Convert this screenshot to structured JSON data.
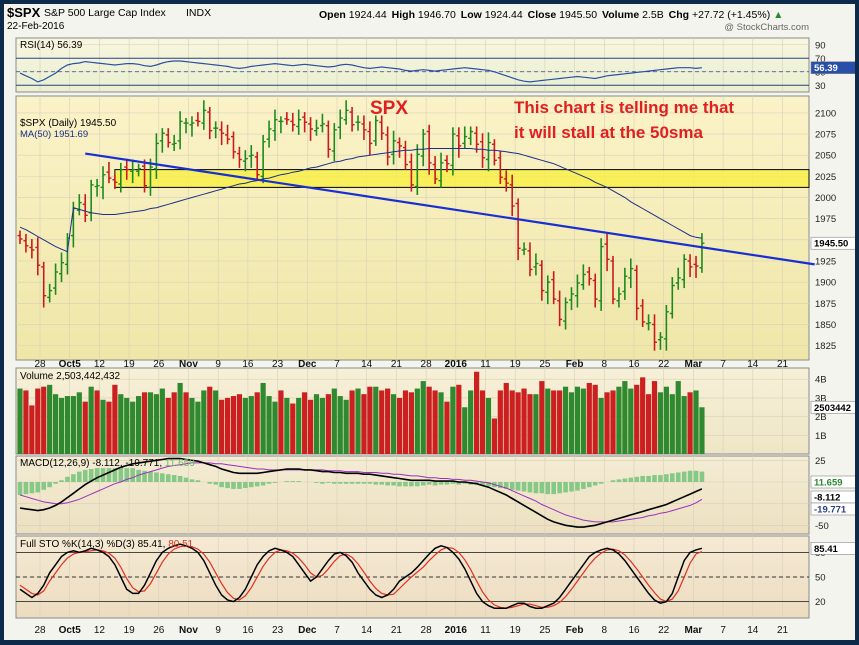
{
  "header": {
    "symbol": "$SPX",
    "name": "S&P 500 Large Cap Index",
    "exchange": "INDX",
    "date": "22-Feb-2016",
    "open_label": "Open",
    "open": "1924.44",
    "high_label": "High",
    "high": "1946.70",
    "low_label": "Low",
    "low": "1924.44",
    "close_label": "Close",
    "close": "1945.50",
    "volume_label": "Volume",
    "volume": "2.5B",
    "chg_label": "Chg",
    "chg": "+27.72 (+1.45%)",
    "chg_arrow": "▲",
    "watermark": "@ StockCharts.com"
  },
  "annotations": {
    "spx_label": "SPX",
    "comment_line1": "This chart is telling me that",
    "comment_line2": "it will stall at the 50sma"
  },
  "x_axis": {
    "ticks": [
      "28",
      "Oct5",
      "12",
      "19",
      "26",
      "Nov",
      "9",
      "16",
      "23",
      "Dec",
      "7",
      "14",
      "21",
      "28",
      "2016",
      "11",
      "19",
      "25",
      "Feb",
      "8",
      "16",
      "22",
      "Mar",
      "7",
      "14",
      "21"
    ],
    "bold": [
      "Oct5",
      "Nov",
      "Dec",
      "2016",
      "Feb",
      "Mar"
    ]
  },
  "chart_data": [
    {
      "type": "bar",
      "subtype": "ohlc",
      "legend": [
        "$SPX (Daily) 1945.50",
        "MA(50) 1951.69"
      ],
      "ylim": [
        1808,
        2120
      ],
      "yticks": [
        1825,
        1850,
        1875,
        1900,
        1925,
        1950,
        1975,
        2000,
        2025,
        2050,
        2075,
        2100
      ],
      "last_value_tag": "1945.50",
      "series_close": [
        1951,
        1943,
        1938,
        1920,
        1884,
        1890,
        1912,
        1923,
        1952,
        1987,
        1994,
        1979,
        2015,
        2014,
        2027,
        2023,
        2018,
        2033,
        2033,
        2033,
        2034,
        2014,
        2036,
        2064,
        2076,
        2065,
        2064,
        2090,
        2088,
        2088,
        2090,
        2103,
        2079,
        2082,
        2076,
        2069,
        2054,
        2045,
        2046,
        2050,
        2027,
        2066,
        2081,
        2092,
        2090,
        2092,
        2086,
        2092,
        2089,
        2081,
        2082,
        2087,
        2057,
        2080,
        2094,
        2103,
        2086,
        2089,
        2080,
        2064,
        2091,
        2076,
        2048,
        2067,
        2061,
        2039,
        2015,
        2051,
        2075,
        2041,
        2022,
        2041,
        2040,
        2075,
        2061,
        2072,
        2078,
        2063,
        2047,
        2065,
        2044,
        2024,
        2017,
        1990,
        1940,
        1939,
        1915,
        1922,
        1890,
        1900,
        1880,
        1856,
        1876,
        1886,
        1899,
        1909,
        1904,
        1880,
        1942,
        1927,
        1880,
        1886,
        1907,
        1916,
        1869,
        1853,
        1852,
        1829,
        1835,
        1865,
        1896,
        1905,
        1927,
        1918,
        1919,
        1946
      ],
      "ma50": [
        1965,
        1962,
        1958,
        1954,
        1950,
        1946,
        1942,
        1939,
        1936,
        1988,
        1986,
        1984,
        1982,
        1981,
        1980,
        1980,
        1980,
        1981,
        1982,
        1983,
        1984,
        1985,
        1987,
        1988,
        1990,
        1992,
        1994,
        1996,
        1998,
        2000,
        2002,
        2004,
        2006,
        2008,
        2010,
        2012,
        2014,
        2016,
        2017,
        2019,
        2020,
        2022,
        2023,
        2025,
        2027,
        2028,
        2030,
        2031,
        2033,
        2035,
        2036,
        2038,
        2040,
        2042,
        2043,
        2045,
        2046,
        2048,
        2049,
        2050,
        2051,
        2052,
        2053,
        2054,
        2055,
        2056,
        2056,
        2057,
        2057,
        2058,
        2058,
        2058,
        2058,
        2058,
        2058,
        2058,
        2058,
        2057,
        2057,
        2056,
        2056,
        2055,
        2054,
        2053,
        2052,
        2050,
        2048,
        2046,
        2044,
        2042,
        2040,
        2037,
        2034,
        2031,
        2028,
        2025,
        2022,
        2018,
        2015,
        2012,
        2008,
        2004,
        2000,
        1995,
        1991,
        1987,
        1983,
        1979,
        1975,
        1971,
        1967,
        1963,
        1959,
        1955,
        1953,
        1952
      ],
      "support_zone": [
        2012,
        2033
      ],
      "trendline": {
        "from": {
          "i": 11,
          "v": 2052
        },
        "to": {
          "i": 134,
          "v": 1921
        }
      }
    },
    {
      "type": "line",
      "name": "RSI(14)",
      "legend": "RSI(14) 56.39",
      "ylim": [
        20,
        100
      ],
      "yticks": [
        90,
        70,
        50,
        30
      ],
      "levels": [
        70,
        30
      ],
      "last_value_tag": "56.39",
      "values": [
        48,
        44,
        40,
        35,
        38,
        43,
        48,
        55,
        60,
        62,
        63,
        65,
        64,
        63,
        62,
        61,
        60,
        61,
        62,
        62,
        61,
        59,
        58,
        60,
        63,
        65,
        66,
        66,
        65,
        64,
        63,
        62,
        61,
        60,
        59,
        58,
        56,
        55,
        56,
        58,
        59,
        60,
        61,
        62,
        61,
        60,
        59,
        60,
        61,
        60,
        59,
        58,
        57,
        58,
        60,
        61,
        60,
        58,
        56,
        55,
        56,
        57,
        56,
        55,
        54,
        52,
        51,
        52,
        53,
        52,
        51,
        52,
        53,
        54,
        55,
        56,
        55,
        54,
        53,
        52,
        50,
        47,
        44,
        41,
        38,
        36,
        35,
        36,
        37,
        38,
        39,
        40,
        41,
        42,
        43,
        42,
        41,
        40,
        42,
        44,
        45,
        46,
        47,
        48,
        49,
        50,
        51,
        52,
        53,
        54,
        55,
        56,
        56,
        56,
        55,
        56
      ]
    },
    {
      "type": "bar",
      "name": "Volume",
      "legend": "Volume 2,503,442,432",
      "ylim": [
        0,
        4.6
      ],
      "yticks": [
        1,
        2,
        3,
        4
      ],
      "ytick_labels": [
        "1B",
        "2B",
        "3B",
        "4B"
      ],
      "last_value_tag": "2503442",
      "values": [
        3.5,
        3.4,
        2.6,
        3.5,
        3.6,
        3.7,
        3.2,
        3.0,
        3.1,
        3.1,
        3.3,
        2.8,
        3.6,
        3.4,
        2.9,
        2.8,
        3.7,
        3.2,
        3.0,
        2.8,
        3.1,
        3.3,
        3.3,
        3.2,
        3.5,
        3.0,
        3.3,
        3.8,
        3.3,
        3.0,
        2.8,
        3.4,
        3.6,
        3.4,
        2.9,
        3.0,
        3.1,
        3.2,
        3.0,
        3.1,
        3.3,
        3.8,
        3.1,
        2.8,
        3.4,
        3.0,
        2.7,
        3.0,
        3.3,
        2.9,
        3.2,
        3.0,
        3.2,
        3.5,
        3.1,
        2.9,
        3.4,
        3.5,
        3.2,
        3.6,
        3.6,
        3.4,
        3.5,
        3.2,
        3.0,
        3.4,
        3.3,
        3.5,
        3.9,
        3.6,
        3.4,
        3.3,
        2.8,
        3.6,
        3.7,
        2.5,
        3.4,
        4.4,
        3.4,
        3.0,
        1.9,
        3.4,
        3.8,
        3.4,
        3.3,
        3.5,
        3.2,
        3.2,
        3.9,
        3.5,
        3.4,
        3.4,
        3.6,
        3.3,
        3.6,
        3.5,
        3.8,
        3.7,
        3.0,
        3.3,
        3.4,
        3.6,
        3.9,
        3.5,
        3.7,
        4.1,
        3.2,
        3.9,
        3.3,
        3.6,
        3.2,
        3.9,
        3.1,
        3.3,
        3.4,
        2.5
      ],
      "up_color": "#2f8a2f",
      "down_color": "#cc2020"
    },
    {
      "type": "line",
      "name": "MACD(12,26,9)",
      "legend_label": "MACD(12,26,9)",
      "legend_macd": "-8.112",
      "legend_signal": "-19.771",
      "legend_hist": "11.659",
      "ylim": [
        -60,
        30
      ],
      "yticks": [
        25,
        0,
        -25,
        -50
      ],
      "last_value_tags": [
        "11.659",
        "-8.112",
        "-19.771"
      ],
      "macd": [
        -30,
        -31,
        -32,
        -33,
        -32,
        -30,
        -27,
        -23,
        -18,
        -13,
        -8,
        -3,
        1,
        5,
        8,
        11,
        14,
        17,
        19,
        21,
        22,
        23,
        24,
        25,
        26,
        27,
        27,
        27,
        26,
        25,
        24,
        22,
        20,
        18,
        15,
        13,
        11,
        10,
        10,
        10,
        10,
        11,
        12,
        13,
        14,
        15,
        15,
        15,
        14,
        14,
        13,
        12,
        12,
        11,
        11,
        10,
        10,
        10,
        9,
        9,
        8,
        7,
        6,
        5,
        4,
        3,
        2,
        2,
        2,
        2,
        1,
        1,
        1,
        1,
        0,
        0,
        -1,
        -2,
        -4,
        -6,
        -9,
        -12,
        -15,
        -19,
        -23,
        -27,
        -31,
        -35,
        -39,
        -43,
        -46,
        -48,
        -50,
        -51,
        -52,
        -52,
        -51,
        -50,
        -48,
        -46,
        -44,
        -42,
        -40,
        -38,
        -36,
        -34,
        -32,
        -30,
        -28,
        -26,
        -23,
        -20,
        -17,
        -14,
        -11,
        -8
      ],
      "signal": [
        -15,
        -17,
        -19,
        -21,
        -23,
        -24,
        -25,
        -25,
        -24,
        -22,
        -20,
        -17,
        -14,
        -11,
        -8,
        -5,
        -2,
        0,
        3,
        5,
        8,
        10,
        12,
        14,
        16,
        18,
        19,
        20,
        21,
        22,
        22,
        22,
        22,
        21,
        21,
        20,
        19,
        18,
        17,
        16,
        15,
        15,
        14,
        14,
        14,
        14,
        14,
        14,
        14,
        14,
        14,
        14,
        13,
        13,
        13,
        12,
        12,
        12,
        11,
        11,
        11,
        10,
        10,
        9,
        9,
        8,
        7,
        7,
        6,
        5,
        5,
        4,
        4,
        3,
        3,
        2,
        2,
        1,
        0,
        -1,
        -3,
        -5,
        -7,
        -10,
        -13,
        -16,
        -19,
        -22,
        -26,
        -29,
        -32,
        -35,
        -38,
        -40,
        -42,
        -44,
        -45,
        -46,
        -46,
        -46,
        -46,
        -45,
        -44,
        -43,
        -42,
        -41,
        -39,
        -38,
        -36,
        -35,
        -33,
        -31,
        -29,
        -27,
        -24,
        -20
      ],
      "macd_color": "#000000",
      "signal_color": "#9b30c0",
      "hist_color": "#86c886"
    },
    {
      "type": "line",
      "name": "Full STO",
      "legend_label": "Full STO %K(14,3) %D(3)",
      "legend_k": "85.41",
      "legend_d": "80.51",
      "ylim": [
        0,
        100
      ],
      "yticks": [
        80,
        50,
        20
      ],
      "levels": [
        80,
        50,
        20
      ],
      "last_value_tag": "85.41",
      "k": [
        35,
        30,
        25,
        30,
        40,
        55,
        65,
        75,
        80,
        82,
        80,
        82,
        85,
        83,
        80,
        75,
        65,
        50,
        35,
        30,
        30,
        40,
        55,
        70,
        80,
        85,
        88,
        90,
        88,
        85,
        80,
        70,
        55,
        40,
        28,
        22,
        20,
        25,
        35,
        50,
        65,
        75,
        82,
        85,
        83,
        80,
        75,
        65,
        55,
        45,
        50,
        60,
        70,
        78,
        80,
        76,
        68,
        55,
        45,
        35,
        28,
        25,
        28,
        35,
        45,
        50,
        55,
        62,
        70,
        78,
        85,
        88,
        86,
        80,
        72,
        60,
        45,
        30,
        20,
        15,
        12,
        12,
        12,
        15,
        18,
        18,
        14,
        12,
        12,
        15,
        18,
        25,
        35,
        45,
        55,
        65,
        75,
        80,
        83,
        85,
        83,
        78,
        70,
        60,
        50,
        40,
        30,
        22,
        18,
        20,
        30,
        50,
        70,
        80,
        83,
        85
      ],
      "d": [
        40,
        35,
        30,
        28,
        33,
        45,
        55,
        65,
        73,
        78,
        80,
        81,
        82,
        83,
        82,
        79,
        73,
        62,
        48,
        37,
        32,
        33,
        42,
        55,
        68,
        78,
        84,
        87,
        88,
        87,
        84,
        78,
        68,
        55,
        42,
        31,
        24,
        22,
        27,
        37,
        50,
        63,
        73,
        80,
        83,
        82,
        79,
        73,
        65,
        55,
        50,
        52,
        60,
        69,
        76,
        78,
        74,
        66,
        56,
        45,
        36,
        30,
        28,
        29,
        36,
        43,
        50,
        56,
        62,
        70,
        77,
        83,
        86,
        85,
        80,
        71,
        59,
        45,
        32,
        22,
        16,
        13,
        12,
        13,
        15,
        17,
        17,
        15,
        13,
        13,
        15,
        19,
        26,
        35,
        45,
        55,
        65,
        73,
        79,
        83,
        84,
        82,
        77,
        69,
        60,
        50,
        40,
        31,
        23,
        20,
        23,
        33,
        50,
        67,
        78,
        81
      ],
      "k_color": "#000000",
      "d_color": "#e03020"
    }
  ]
}
